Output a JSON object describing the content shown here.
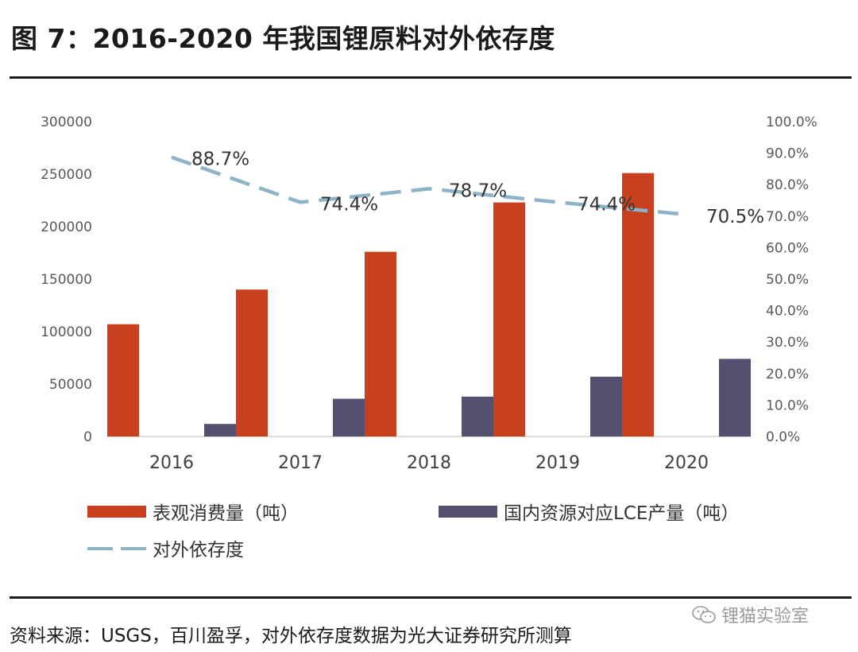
{
  "figure_title": "图 7：2016-2020 年我国锂原料对外依存度",
  "source_note": "资料来源：USGS，百川盈孚，对外依存度数据为光大证券研究所测算",
  "watermark": "锂猫实验室",
  "colors": {
    "consumption": "#c8411f",
    "production": "#545170",
    "dependence": "#8db3c6"
  },
  "chart_data": {
    "type": "bar",
    "categories": [
      "2016",
      "2017",
      "2018",
      "2019",
      "2020"
    ],
    "series": [
      {
        "name": "表观消费量（吨）",
        "type": "bar",
        "axis": "left",
        "values": [
          107000,
          140000,
          176000,
          223000,
          251000
        ]
      },
      {
        "name": "国内资源对应LCE产量（吨）",
        "type": "bar",
        "axis": "left",
        "values": [
          12000,
          36000,
          38000,
          57000,
          74000
        ]
      },
      {
        "name": "对外依存度",
        "type": "line",
        "axis": "right",
        "values": [
          88.7,
          74.4,
          78.7,
          74.4,
          70.5
        ],
        "labels": [
          "88.7%",
          "74.4%",
          "78.7%",
          "74.4%",
          "70.5%"
        ]
      }
    ],
    "y_left": {
      "ylim": [
        0,
        300000
      ],
      "ticks": [
        "0",
        "50000",
        "100000",
        "150000",
        "200000",
        "250000",
        "300000"
      ]
    },
    "y_right": {
      "ylim": [
        0,
        100
      ],
      "ticks": [
        "0.0%",
        "10.0%",
        "20.0%",
        "30.0%",
        "40.0%",
        "50.0%",
        "60.0%",
        "70.0%",
        "80.0%",
        "90.0%",
        "100.0%"
      ]
    },
    "grid": false,
    "legend_position": "bottom"
  }
}
